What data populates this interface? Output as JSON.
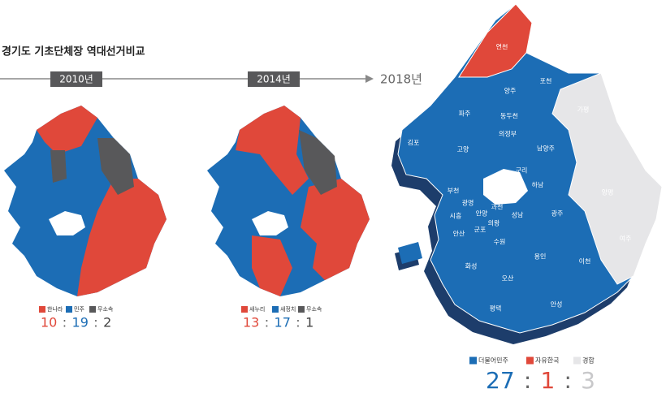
{
  "title": "경기도 기초단체장 역대선거비교",
  "separator": ":",
  "maps": [
    {
      "year": "2010년",
      "legend": [
        {
          "label": "한나라",
          "color": "#e0483a"
        },
        {
          "label": "민주",
          "color": "#1c6db5"
        },
        {
          "label": "무소속",
          "color": "#58585a"
        }
      ],
      "counts": [
        10,
        19,
        2
      ]
    },
    {
      "year": "2014년",
      "legend": [
        {
          "label": "새누리",
          "color": "#e0483a"
        },
        {
          "label": "새정치",
          "color": "#1c6db5"
        },
        {
          "label": "무소속",
          "color": "#58585a"
        }
      ],
      "counts": [
        13,
        17,
        1
      ]
    },
    {
      "year": "2018년",
      "legend": [
        {
          "label": "더불어민주",
          "color": "#1c6db5"
        },
        {
          "label": "자유한국",
          "color": "#e0483a"
        },
        {
          "label": "경합",
          "color": "#e6e6e8"
        }
      ],
      "counts": [
        27,
        1,
        3
      ],
      "regions": [
        "연천",
        "포천",
        "양주",
        "가평",
        "파주",
        "동두천",
        "의정부",
        "김포",
        "고양",
        "남양주",
        "구리",
        "하남",
        "부천",
        "광명",
        "과천",
        "성남",
        "시흥",
        "안양",
        "의왕",
        "광주",
        "양평",
        "안산",
        "군포",
        "수원",
        "여주",
        "화성",
        "용인",
        "이천",
        "오산",
        "평택",
        "안성"
      ]
    }
  ]
}
